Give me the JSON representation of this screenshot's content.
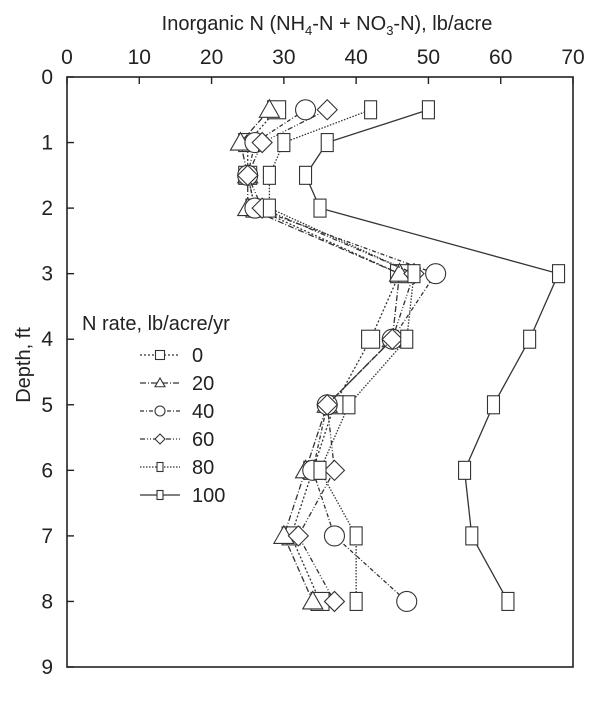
{
  "chart_data": {
    "type": "line",
    "x_axis": {
      "position": "top",
      "label_parts": [
        "Inorganic N (NH",
        "4",
        "-N + NO",
        "3",
        "-N), lb/acre"
      ],
      "range": [
        0,
        70
      ],
      "ticks": [
        "0",
        "10",
        "20",
        "30",
        "40",
        "50",
        "60",
        "70"
      ]
    },
    "y_axis": {
      "label": "Depth, ft",
      "range": [
        0,
        9
      ],
      "inverted": true,
      "ticks": [
        "0",
        "1",
        "2",
        "3",
        "4",
        "5",
        "6",
        "7",
        "8",
        "9"
      ]
    },
    "depth": [
      0.5,
      1,
      1.5,
      2,
      3,
      4,
      5,
      6,
      7,
      8
    ],
    "legend_title": "N rate, lb/acre/yr",
    "legend_position": "left-middle",
    "grid": false,
    "series": [
      {
        "name": "0",
        "marker": "square",
        "dash": "2,2",
        "values": [
          29,
          25,
          25,
          26,
          46,
          42,
          37,
          34,
          31,
          35
        ]
      },
      {
        "name": "20",
        "marker": "triangle",
        "dash": "6,2,1,2",
        "values": [
          28,
          24,
          25,
          25,
          46,
          45,
          36,
          33,
          30,
          34
        ]
      },
      {
        "name": "40",
        "marker": "circle",
        "dash": "4,2,1,2",
        "values": [
          33,
          26,
          25,
          26,
          51,
          45,
          36,
          34,
          37,
          47
        ]
      },
      {
        "name": "60",
        "marker": "diamond",
        "dash": "5,2,1,2,1,2",
        "values": [
          36,
          27,
          25,
          27,
          48,
          45,
          36,
          37,
          32,
          37
        ]
      },
      {
        "name": "80",
        "marker": "rect-narrow",
        "dash": "1.5,1.5",
        "values": [
          42,
          30,
          28,
          28,
          48,
          47,
          39,
          35,
          40,
          40
        ]
      },
      {
        "name": "100",
        "marker": "rect-narrow",
        "dash": "",
        "values": [
          50,
          36,
          33,
          35,
          68,
          64,
          59,
          55,
          56,
          61
        ]
      }
    ]
  }
}
